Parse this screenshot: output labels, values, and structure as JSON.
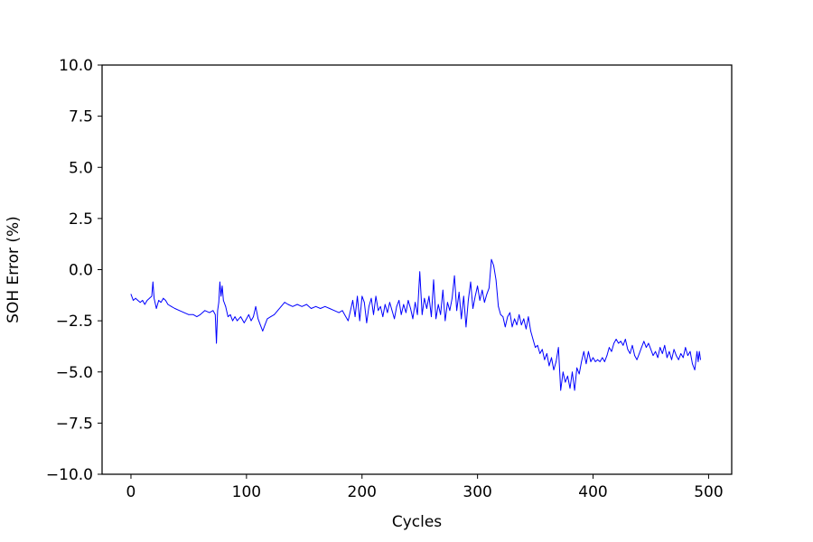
{
  "chart_data": {
    "type": "line",
    "title": "",
    "xlabel": "Cycles",
    "ylabel": "SOH Error (%)",
    "xlim": [
      -25,
      520
    ],
    "ylim": [
      -10,
      10
    ],
    "xticks": [
      0,
      100,
      200,
      300,
      400,
      500
    ],
    "yticks": [
      -10.0,
      -7.5,
      -5.0,
      -2.5,
      0.0,
      2.5,
      5.0,
      7.5,
      10.0
    ],
    "xtick_labels": [
      "0",
      "100",
      "200",
      "300",
      "400",
      "500"
    ],
    "ytick_labels": [
      "−10.0",
      "−7.5",
      "−5.0",
      "−2.5",
      "0.0",
      "2.5",
      "5.0",
      "7.5",
      "10.0"
    ],
    "grid": false,
    "legend": "none",
    "line_color": "#0000ff",
    "series": [
      {
        "points": [
          [
            0,
            -1.2
          ],
          [
            2,
            -1.5
          ],
          [
            4,
            -1.4
          ],
          [
            6,
            -1.5
          ],
          [
            8,
            -1.6
          ],
          [
            10,
            -1.5
          ],
          [
            12,
            -1.7
          ],
          [
            14,
            -1.5
          ],
          [
            16,
            -1.4
          ],
          [
            18,
            -1.3
          ],
          [
            19,
            -0.6
          ],
          [
            20,
            -1.4
          ],
          [
            22,
            -1.9
          ],
          [
            24,
            -1.5
          ],
          [
            26,
            -1.6
          ],
          [
            28,
            -1.4
          ],
          [
            30,
            -1.5
          ],
          [
            32,
            -1.7
          ],
          [
            35,
            -1.8
          ],
          [
            38,
            -1.9
          ],
          [
            42,
            -2.0
          ],
          [
            46,
            -2.1
          ],
          [
            50,
            -2.2
          ],
          [
            54,
            -2.2
          ],
          [
            57,
            -2.3
          ],
          [
            60,
            -2.2
          ],
          [
            64,
            -2.0
          ],
          [
            68,
            -2.1
          ],
          [
            71,
            -2.0
          ],
          [
            73,
            -2.2
          ],
          [
            74,
            -3.6
          ],
          [
            75,
            -2.0
          ],
          [
            76,
            -1.6
          ],
          [
            77,
            -0.6
          ],
          [
            78,
            -1.3
          ],
          [
            79,
            -0.8
          ],
          [
            80,
            -1.5
          ],
          [
            82,
            -1.8
          ],
          [
            84,
            -2.3
          ],
          [
            86,
            -2.2
          ],
          [
            88,
            -2.5
          ],
          [
            90,
            -2.3
          ],
          [
            92,
            -2.5
          ],
          [
            95,
            -2.3
          ],
          [
            98,
            -2.6
          ],
          [
            100,
            -2.4
          ],
          [
            102,
            -2.2
          ],
          [
            104,
            -2.5
          ],
          [
            106,
            -2.3
          ],
          [
            108,
            -1.8
          ],
          [
            110,
            -2.4
          ],
          [
            112,
            -2.7
          ],
          [
            114,
            -3.0
          ],
          [
            116,
            -2.7
          ],
          [
            118,
            -2.4
          ],
          [
            121,
            -2.3
          ],
          [
            124,
            -2.2
          ],
          [
            127,
            -2.0
          ],
          [
            130,
            -1.8
          ],
          [
            133,
            -1.6
          ],
          [
            136,
            -1.7
          ],
          [
            140,
            -1.8
          ],
          [
            144,
            -1.7
          ],
          [
            148,
            -1.8
          ],
          [
            152,
            -1.7
          ],
          [
            156,
            -1.9
          ],
          [
            160,
            -1.8
          ],
          [
            164,
            -1.9
          ],
          [
            168,
            -1.8
          ],
          [
            172,
            -1.9
          ],
          [
            176,
            -2.0
          ],
          [
            180,
            -2.1
          ],
          [
            183,
            -2.0
          ],
          [
            186,
            -2.3
          ],
          [
            188,
            -2.5
          ],
          [
            190,
            -2.0
          ],
          [
            192,
            -1.5
          ],
          [
            194,
            -2.3
          ],
          [
            196,
            -1.3
          ],
          [
            198,
            -2.5
          ],
          [
            200,
            -1.3
          ],
          [
            202,
            -1.6
          ],
          [
            204,
            -2.6
          ],
          [
            206,
            -1.8
          ],
          [
            208,
            -1.4
          ],
          [
            210,
            -2.2
          ],
          [
            212,
            -1.3
          ],
          [
            214,
            -2.0
          ],
          [
            216,
            -1.8
          ],
          [
            218,
            -2.3
          ],
          [
            220,
            -1.7
          ],
          [
            222,
            -2.1
          ],
          [
            224,
            -1.6
          ],
          [
            226,
            -2.0
          ],
          [
            228,
            -2.4
          ],
          [
            230,
            -1.8
          ],
          [
            232,
            -1.5
          ],
          [
            234,
            -2.2
          ],
          [
            236,
            -1.7
          ],
          [
            238,
            -2.1
          ],
          [
            240,
            -1.5
          ],
          [
            242,
            -1.9
          ],
          [
            244,
            -2.4
          ],
          [
            246,
            -1.6
          ],
          [
            248,
            -2.2
          ],
          [
            250,
            -0.1
          ],
          [
            252,
            -2.2
          ],
          [
            254,
            -1.4
          ],
          [
            256,
            -1.9
          ],
          [
            258,
            -1.3
          ],
          [
            260,
            -2.3
          ],
          [
            262,
            -0.5
          ],
          [
            264,
            -2.4
          ],
          [
            266,
            -1.7
          ],
          [
            268,
            -2.2
          ],
          [
            270,
            -1.0
          ],
          [
            272,
            -2.5
          ],
          [
            274,
            -1.6
          ],
          [
            276,
            -2.0
          ],
          [
            278,
            -1.4
          ],
          [
            280,
            -0.3
          ],
          [
            282,
            -2.0
          ],
          [
            284,
            -1.1
          ],
          [
            286,
            -2.4
          ],
          [
            288,
            -1.3
          ],
          [
            290,
            -2.8
          ],
          [
            292,
            -1.5
          ],
          [
            294,
            -0.6
          ],
          [
            296,
            -1.9
          ],
          [
            298,
            -1.3
          ],
          [
            300,
            -0.8
          ],
          [
            302,
            -1.5
          ],
          [
            304,
            -1.0
          ],
          [
            306,
            -1.6
          ],
          [
            308,
            -1.2
          ],
          [
            310,
            -0.9
          ],
          [
            312,
            0.5
          ],
          [
            314,
            0.2
          ],
          [
            316,
            -0.5
          ],
          [
            318,
            -1.8
          ],
          [
            320,
            -2.2
          ],
          [
            322,
            -2.3
          ],
          [
            324,
            -2.8
          ],
          [
            326,
            -2.3
          ],
          [
            328,
            -2.1
          ],
          [
            330,
            -2.8
          ],
          [
            332,
            -2.4
          ],
          [
            334,
            -2.7
          ],
          [
            336,
            -2.2
          ],
          [
            338,
            -2.7
          ],
          [
            340,
            -2.4
          ],
          [
            342,
            -2.9
          ],
          [
            344,
            -2.3
          ],
          [
            346,
            -3.0
          ],
          [
            348,
            -3.4
          ],
          [
            350,
            -3.8
          ],
          [
            352,
            -3.7
          ],
          [
            354,
            -4.1
          ],
          [
            356,
            -3.9
          ],
          [
            358,
            -4.4
          ],
          [
            360,
            -4.1
          ],
          [
            362,
            -4.7
          ],
          [
            364,
            -4.3
          ],
          [
            366,
            -4.9
          ],
          [
            368,
            -4.5
          ],
          [
            370,
            -3.8
          ],
          [
            372,
            -5.9
          ],
          [
            374,
            -5.0
          ],
          [
            376,
            -5.5
          ],
          [
            378,
            -5.2
          ],
          [
            380,
            -5.8
          ],
          [
            382,
            -5.0
          ],
          [
            384,
            -5.9
          ],
          [
            386,
            -4.8
          ],
          [
            388,
            -5.1
          ],
          [
            390,
            -4.5
          ],
          [
            392,
            -4.0
          ],
          [
            394,
            -4.6
          ],
          [
            396,
            -4.0
          ],
          [
            398,
            -4.5
          ],
          [
            400,
            -4.3
          ],
          [
            402,
            -4.5
          ],
          [
            404,
            -4.4
          ],
          [
            406,
            -4.5
          ],
          [
            408,
            -4.3
          ],
          [
            410,
            -4.5
          ],
          [
            412,
            -4.2
          ],
          [
            414,
            -3.8
          ],
          [
            416,
            -4.0
          ],
          [
            418,
            -3.6
          ],
          [
            420,
            -3.4
          ],
          [
            422,
            -3.6
          ],
          [
            424,
            -3.5
          ],
          [
            426,
            -3.7
          ],
          [
            428,
            -3.4
          ],
          [
            430,
            -3.9
          ],
          [
            432,
            -4.1
          ],
          [
            434,
            -3.7
          ],
          [
            436,
            -4.2
          ],
          [
            438,
            -4.4
          ],
          [
            440,
            -4.1
          ],
          [
            442,
            -3.8
          ],
          [
            444,
            -3.5
          ],
          [
            446,
            -3.8
          ],
          [
            448,
            -3.6
          ],
          [
            450,
            -3.9
          ],
          [
            452,
            -4.2
          ],
          [
            454,
            -4.0
          ],
          [
            456,
            -4.3
          ],
          [
            458,
            -3.8
          ],
          [
            460,
            -4.1
          ],
          [
            462,
            -3.7
          ],
          [
            464,
            -4.3
          ],
          [
            466,
            -4.0
          ],
          [
            468,
            -4.4
          ],
          [
            470,
            -3.9
          ],
          [
            472,
            -4.2
          ],
          [
            474,
            -4.4
          ],
          [
            476,
            -4.1
          ],
          [
            478,
            -4.3
          ],
          [
            480,
            -3.8
          ],
          [
            482,
            -4.2
          ],
          [
            484,
            -4.0
          ],
          [
            486,
            -4.6
          ],
          [
            488,
            -4.9
          ],
          [
            490,
            -4.0
          ],
          [
            491,
            -4.5
          ],
          [
            492,
            -4.0
          ],
          [
            493,
            -4.4
          ]
        ]
      }
    ]
  }
}
